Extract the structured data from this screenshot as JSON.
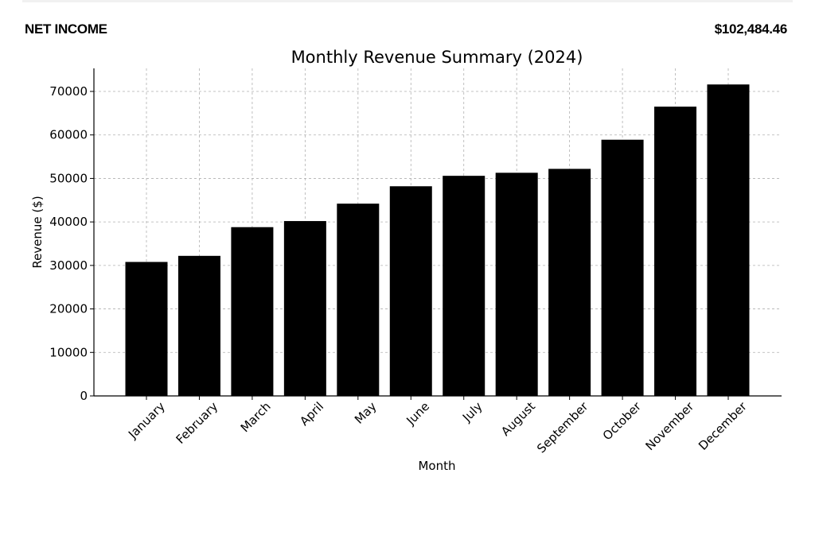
{
  "header": {
    "label": "NET INCOME",
    "value": "$102,484.46"
  },
  "colors": {
    "bar": "#000000",
    "grid": "#b0b0b0",
    "axis": "#000000"
  },
  "chart_data": {
    "type": "bar",
    "title": "Monthly Revenue Summary (2024)",
    "xlabel": "Month",
    "ylabel": "Revenue ($)",
    "categories": [
      "January",
      "February",
      "March",
      "April",
      "May",
      "June",
      "July",
      "August",
      "September",
      "October",
      "November",
      "December"
    ],
    "values": [
      30800,
      32200,
      38800,
      40200,
      44200,
      48200,
      50600,
      51300,
      52200,
      58900,
      66500,
      71600
    ],
    "ylim": [
      0,
      75000
    ],
    "yticks": [
      0,
      10000,
      20000,
      30000,
      40000,
      50000,
      60000,
      70000
    ],
    "grid": true,
    "legend": "none"
  }
}
